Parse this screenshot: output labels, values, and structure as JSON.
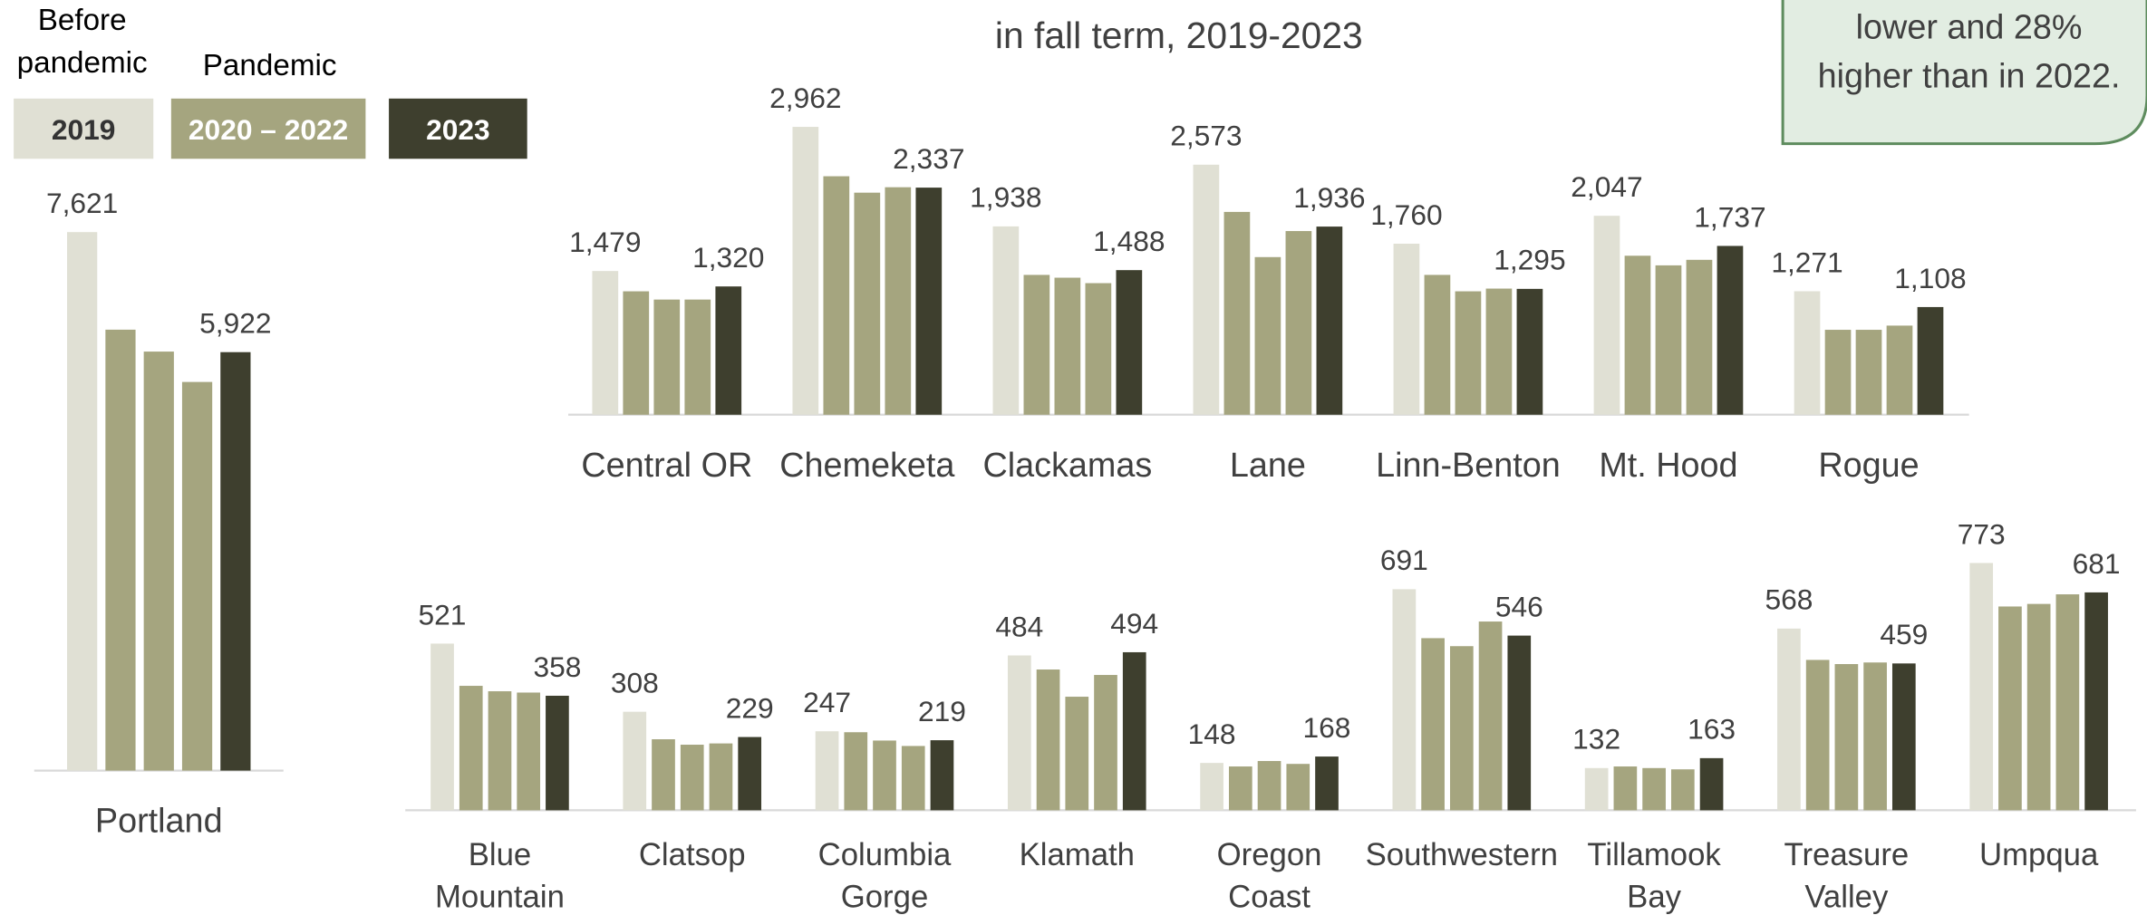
{
  "chart_data": {
    "type": "bar",
    "title": "in fall term, 2019-2023",
    "annotation_lines": [
      "lower and 28%",
      "higher than in 2022."
    ],
    "legend_headers": [
      "Before pandemic",
      "Pandemic"
    ],
    "series": [
      {
        "name": "2019",
        "color": "#e0e0d4"
      },
      {
        "name": "2020 – 2022",
        "color": "#a5a57f"
      },
      {
        "name": "2023",
        "color": "#3e3f2e"
      }
    ],
    "panels": [
      {
        "categories": [
          "Portland"
        ],
        "ylim": [
          0,
          8000
        ],
        "values": [
          [
            7621,
            6240,
            5930,
            5500,
            5922
          ]
        ],
        "value_labels": [
          [
            "7,621",
            "5,922"
          ]
        ]
      },
      {
        "categories": [
          "Central OR",
          "Chemeketa",
          "Clackamas",
          "Lane",
          "Linn-Benton",
          "Mt. Hood",
          "Rogue"
        ],
        "ylim": [
          0,
          3000
        ],
        "values": [
          [
            1479,
            1270,
            1185,
            1185,
            1320
          ],
          [
            2962,
            2454,
            2285,
            2341,
            2337
          ],
          [
            1938,
            1439,
            1410,
            1354,
            1488
          ],
          [
            2573,
            2087,
            1622,
            1890,
            1936
          ],
          [
            1760,
            1439,
            1270,
            1298,
            1295
          ],
          [
            2047,
            1636,
            1537,
            1594,
            1737
          ],
          [
            1271,
            874,
            874,
            917,
            1108
          ]
        ],
        "value_labels": [
          [
            "1,479",
            "1,320"
          ],
          [
            "2,962",
            "2,337"
          ],
          [
            "1,938",
            "1,488"
          ],
          [
            "2,573",
            "1,936"
          ],
          [
            "1,760",
            "1,295"
          ],
          [
            "2,047",
            "1,737"
          ],
          [
            "1,271",
            "1,108"
          ]
        ]
      },
      {
        "categories": [
          "Blue Mountain",
          "Clatsop",
          "Columbia Gorge",
          "Klamath",
          "Oregon Coast",
          "Southwestern",
          "Tillamook Bay",
          "Treasure Valley",
          "Umpqua"
        ],
        "ylim": [
          0,
          800
        ],
        "values": [
          [
            521,
            389,
            372,
            368,
            358
          ],
          [
            308,
            222,
            205,
            209,
            229
          ],
          [
            247,
            244,
            218,
            201,
            219
          ],
          [
            484,
            440,
            355,
            423,
            494
          ],
          [
            148,
            137,
            154,
            145,
            168
          ],
          [
            691,
            538,
            513,
            590,
            546
          ],
          [
            132,
            137,
            132,
            128,
            163
          ],
          [
            568,
            470,
            457,
            462,
            459
          ],
          [
            773,
            637,
            645,
            675,
            681
          ]
        ],
        "value_labels": [
          [
            "521",
            "358"
          ],
          [
            "308",
            "229"
          ],
          [
            "247",
            "219"
          ],
          [
            "484",
            "494"
          ],
          [
            "148",
            "168"
          ],
          [
            "691",
            "546"
          ],
          [
            "132",
            "163"
          ],
          [
            "568",
            "459"
          ],
          [
            "773",
            "681"
          ]
        ]
      }
    ]
  }
}
